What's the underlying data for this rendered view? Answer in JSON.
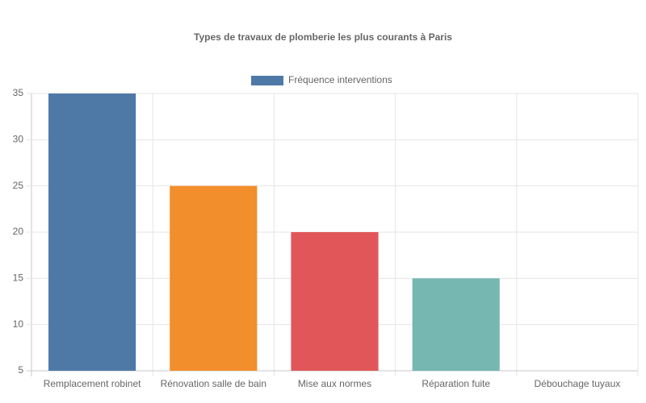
{
  "chart_data": {
    "type": "bar",
    "title": "Types de travaux de plomberie les plus courants à Paris",
    "categories": [
      "Remplacement robinet",
      "Rénovation salle de bain",
      "Mise aux normes",
      "Réparation fuite",
      "Débouchage tuyaux"
    ],
    "series": [
      {
        "name": "Fréquence interventions",
        "color": "#4e79a7",
        "values": [
          35,
          25,
          20,
          15,
          5
        ]
      }
    ],
    "bar_colors": [
      "#4e79a7",
      "#f28e2b",
      "#e15759",
      "#76b7b2",
      "#59a14f"
    ],
    "ylim": [
      5,
      35
    ],
    "yticks": [
      5,
      10,
      15,
      20,
      25,
      30,
      35
    ],
    "grid": true,
    "legend": "top"
  }
}
